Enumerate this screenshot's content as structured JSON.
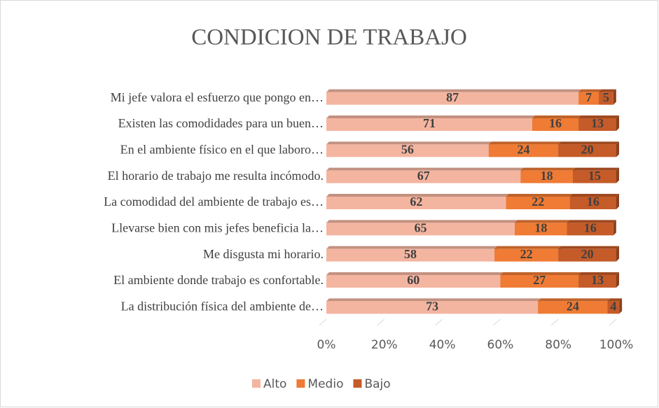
{
  "chart_data": {
    "type": "bar",
    "orientation": "horizontal",
    "stacked": "percent",
    "title": "CONDICION DE TRABAJO",
    "categories": [
      "Mi jefe valora el esfuerzo que pongo en…",
      "Existen las comodidades para un buen…",
      "En el ambiente físico en el que laboro…",
      "El horario de trabajo me resulta incómodo.",
      "La comodidad del ambiente de trabajo es…",
      "Llevarse bien con mis jefes beneficia la…",
      "Me disgusta mi horario.",
      "El ambiente donde trabajo es confortable.",
      "La distribución física del ambiente de…"
    ],
    "series": [
      {
        "name": "Alto",
        "color": "#f4b5a0",
        "values": [
          87,
          71,
          56,
          67,
          62,
          65,
          58,
          60,
          73
        ]
      },
      {
        "name": "Medio",
        "color": "#ef7b34",
        "values": [
          7,
          16,
          24,
          18,
          22,
          18,
          22,
          27,
          24
        ]
      },
      {
        "name": "Bajo",
        "color": "#c55b28",
        "values": [
          5,
          13,
          20,
          15,
          16,
          16,
          20,
          13,
          4
        ]
      }
    ],
    "xlim": [
      0,
      100
    ],
    "xticks": [
      {
        "value": 0,
        "label": "0%"
      },
      {
        "value": 20,
        "label": "20%"
      },
      {
        "value": 40,
        "label": "40%"
      },
      {
        "value": 60,
        "label": "60%"
      },
      {
        "value": 80,
        "label": "80%"
      },
      {
        "value": 100,
        "label": "100%"
      }
    ],
    "legend": "bottom"
  }
}
